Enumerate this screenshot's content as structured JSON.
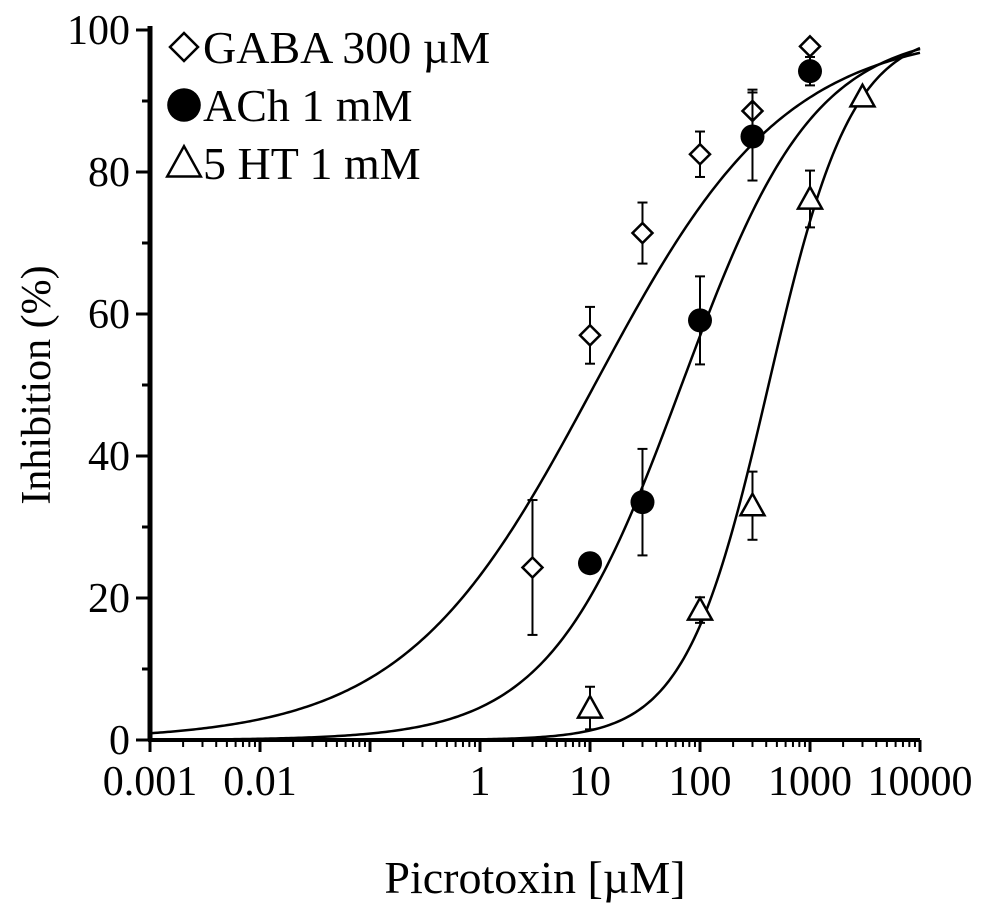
{
  "chart_data": {
    "type": "scatter",
    "title": "",
    "xlabel": "Picrotoxin [µM]",
    "ylabel": "Inhibition (%)",
    "xscale": "log",
    "xlim": [
      0.001,
      10000
    ],
    "ylim": [
      0,
      100
    ],
    "x_ticks": [
      {
        "value": 0.001,
        "label": "0.001"
      },
      {
        "value": 0.01,
        "label": "0.01"
      },
      {
        "value": 1,
        "label": "1"
      },
      {
        "value": 10,
        "label": "10"
      },
      {
        "value": 100,
        "label": "100"
      },
      {
        "value": 1000,
        "label": "1000"
      },
      {
        "value": 10000,
        "label": "10000"
      }
    ],
    "y_ticks": [
      {
        "value": 0,
        "label": "0"
      },
      {
        "value": 20,
        "label": "20"
      },
      {
        "value": 40,
        "label": "40"
      },
      {
        "value": 60,
        "label": "60"
      },
      {
        "value": 80,
        "label": "80"
      },
      {
        "value": 100,
        "label": "100"
      }
    ],
    "grid": false,
    "legend_position": "top-left",
    "series": [
      {
        "name": "GABA 300 µM",
        "marker": "diamond-open",
        "points": [
          {
            "x": 3,
            "y": 24.3,
            "err": 9.5
          },
          {
            "x": 10,
            "y": 57.0,
            "err": 4.0
          },
          {
            "x": 30,
            "y": 71.4,
            "err": 4.3
          },
          {
            "x": 100,
            "y": 82.5,
            "err": 3.2
          },
          {
            "x": 300,
            "y": 88.6,
            "err": 3.0
          },
          {
            "x": 1000,
            "y": 97.7,
            "err": 0.0
          }
        ],
        "fit": {
          "ic50": 11,
          "hill": 0.5
        }
      },
      {
        "name": "ACh 1 mM",
        "marker": "circle-filled",
        "points": [
          {
            "x": 10,
            "y": 24.9,
            "err": 0.0
          },
          {
            "x": 30,
            "y": 33.5,
            "err": 7.5
          },
          {
            "x": 100,
            "y": 59.1,
            "err": 6.2
          },
          {
            "x": 300,
            "y": 85.0,
            "err": 6.2
          },
          {
            "x": 1000,
            "y": 94.2,
            "err": 2.0
          }
        ],
        "fit": {
          "ic50": 68,
          "hill": 0.72
        }
      },
      {
        "name": "5 HT 1 mM",
        "marker": "triangle-open",
        "points": [
          {
            "x": 10,
            "y": 4.5,
            "err": 3.0
          },
          {
            "x": 100,
            "y": 18.3,
            "err": 1.8
          },
          {
            "x": 300,
            "y": 33.0,
            "err": 4.8
          },
          {
            "x": 1000,
            "y": 76.2,
            "err": 4.0
          },
          {
            "x": 3000,
            "y": 90.6,
            "err": 0.0
          }
        ],
        "fit": {
          "ic50": 420,
          "hill": 1.15
        }
      }
    ]
  }
}
